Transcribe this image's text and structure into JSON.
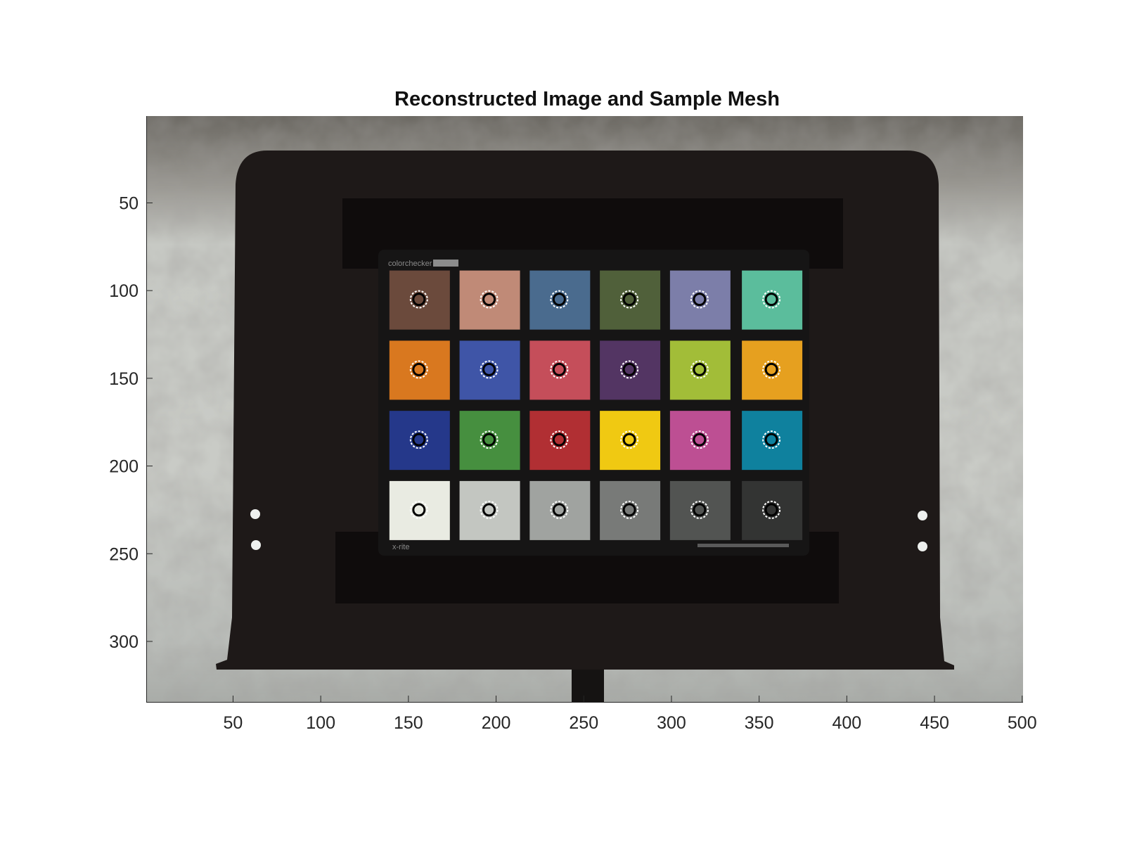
{
  "title": "Reconstructed Image and Sample Mesh",
  "axes": {
    "x_ticks": [
      "50",
      "100",
      "150",
      "200",
      "250",
      "300",
      "350",
      "400",
      "450",
      "500"
    ],
    "y_ticks": [
      "50",
      "100",
      "150",
      "200",
      "250",
      "300"
    ],
    "x_range": [
      0.5,
      500.5
    ],
    "y_range": [
      0.5,
      334.5
    ],
    "y_reversed": true
  },
  "image": {
    "content": "Photograph of an X-Rite ColorChecker chart mounted on a black stand, outdoors",
    "background_color": "#c9cbc6",
    "stand_color": "#1d1817"
  },
  "chart_labels": {
    "brand_top": "colorchecker",
    "brand_bottom": "x-rite"
  },
  "color_patches": [
    {
      "row": 1,
      "col": 1,
      "color": "#6b4a3c",
      "x": 156,
      "y": 105
    },
    {
      "row": 1,
      "col": 2,
      "color": "#c08a77",
      "x": 196,
      "y": 105
    },
    {
      "row": 1,
      "col": 3,
      "color": "#4a6b8e",
      "x": 236,
      "y": 105
    },
    {
      "row": 1,
      "col": 4,
      "color": "#50603a",
      "x": 276,
      "y": 105
    },
    {
      "row": 1,
      "col": 5,
      "color": "#7c7ea9",
      "x": 316,
      "y": 105
    },
    {
      "row": 1,
      "col": 6,
      "color": "#5bbd9c",
      "x": 357,
      "y": 105
    },
    {
      "row": 2,
      "col": 1,
      "color": "#d9781f",
      "x": 156,
      "y": 145
    },
    {
      "row": 2,
      "col": 2,
      "color": "#3f55a7",
      "x": 196,
      "y": 145
    },
    {
      "row": 2,
      "col": 3,
      "color": "#c54e5a",
      "x": 236,
      "y": 145
    },
    {
      "row": 2,
      "col": 4,
      "color": "#533563",
      "x": 276,
      "y": 145
    },
    {
      "row": 2,
      "col": 5,
      "color": "#a2bd38",
      "x": 316,
      "y": 145
    },
    {
      "row": 2,
      "col": 6,
      "color": "#e6a01f",
      "x": 357,
      "y": 145
    },
    {
      "row": 3,
      "col": 1,
      "color": "#25388a",
      "x": 156,
      "y": 185
    },
    {
      "row": 3,
      "col": 2,
      "color": "#468f3f",
      "x": 196,
      "y": 185
    },
    {
      "row": 3,
      "col": 3,
      "color": "#b12f33",
      "x": 236,
      "y": 185
    },
    {
      "row": 3,
      "col": 4,
      "color": "#f0c912",
      "x": 276,
      "y": 185
    },
    {
      "row": 3,
      "col": 5,
      "color": "#bd4f93",
      "x": 316,
      "y": 185
    },
    {
      "row": 3,
      "col": 6,
      "color": "#0f819e",
      "x": 357,
      "y": 185
    },
    {
      "row": 4,
      "col": 1,
      "color": "#e9ebe2",
      "x": 156,
      "y": 225
    },
    {
      "row": 4,
      "col": 2,
      "color": "#c3c6c1",
      "x": 196,
      "y": 225
    },
    {
      "row": 4,
      "col": 3,
      "color": "#a0a3a0",
      "x": 236,
      "y": 225
    },
    {
      "row": 4,
      "col": 4,
      "color": "#787a78",
      "x": 276,
      "y": 225
    },
    {
      "row": 4,
      "col": 5,
      "color": "#525452",
      "x": 316,
      "y": 225
    },
    {
      "row": 4,
      "col": 6,
      "color": "#333433",
      "x": 357,
      "y": 225
    }
  ],
  "marker": {
    "ring_color": "#ffffff",
    "center_outline": "#000000"
  }
}
